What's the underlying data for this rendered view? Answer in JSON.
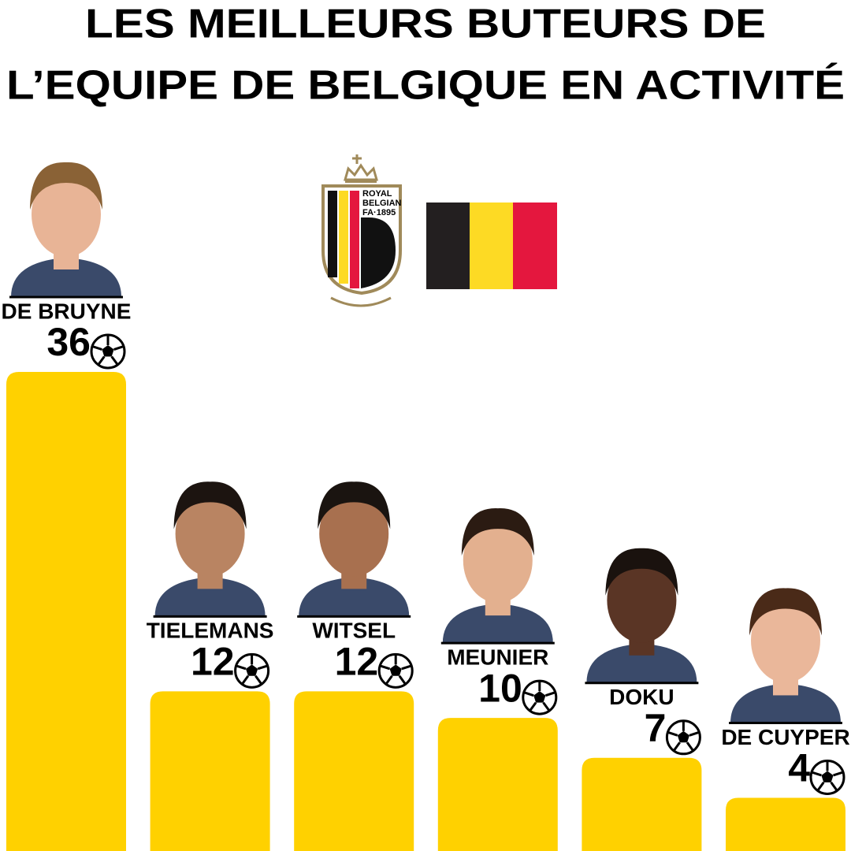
{
  "chart_data": {
    "type": "bar",
    "title": [
      "LES MEILLEURS BUTEURS DE",
      "L’EQUIPE DE BELGIQUE EN ACTIVITÉ"
    ],
    "annotations": [
      "ROYAL",
      "BELGIAN",
      "FA·1895"
    ],
    "categories": [
      "DE BRUYNE",
      "TIELEMANS",
      "WITSEL",
      "MEUNIER",
      "DOKU",
      "DE CUYPER"
    ],
    "values": [
      36,
      12,
      12,
      10,
      7,
      4
    ],
    "color": "#FFD100"
  }
}
